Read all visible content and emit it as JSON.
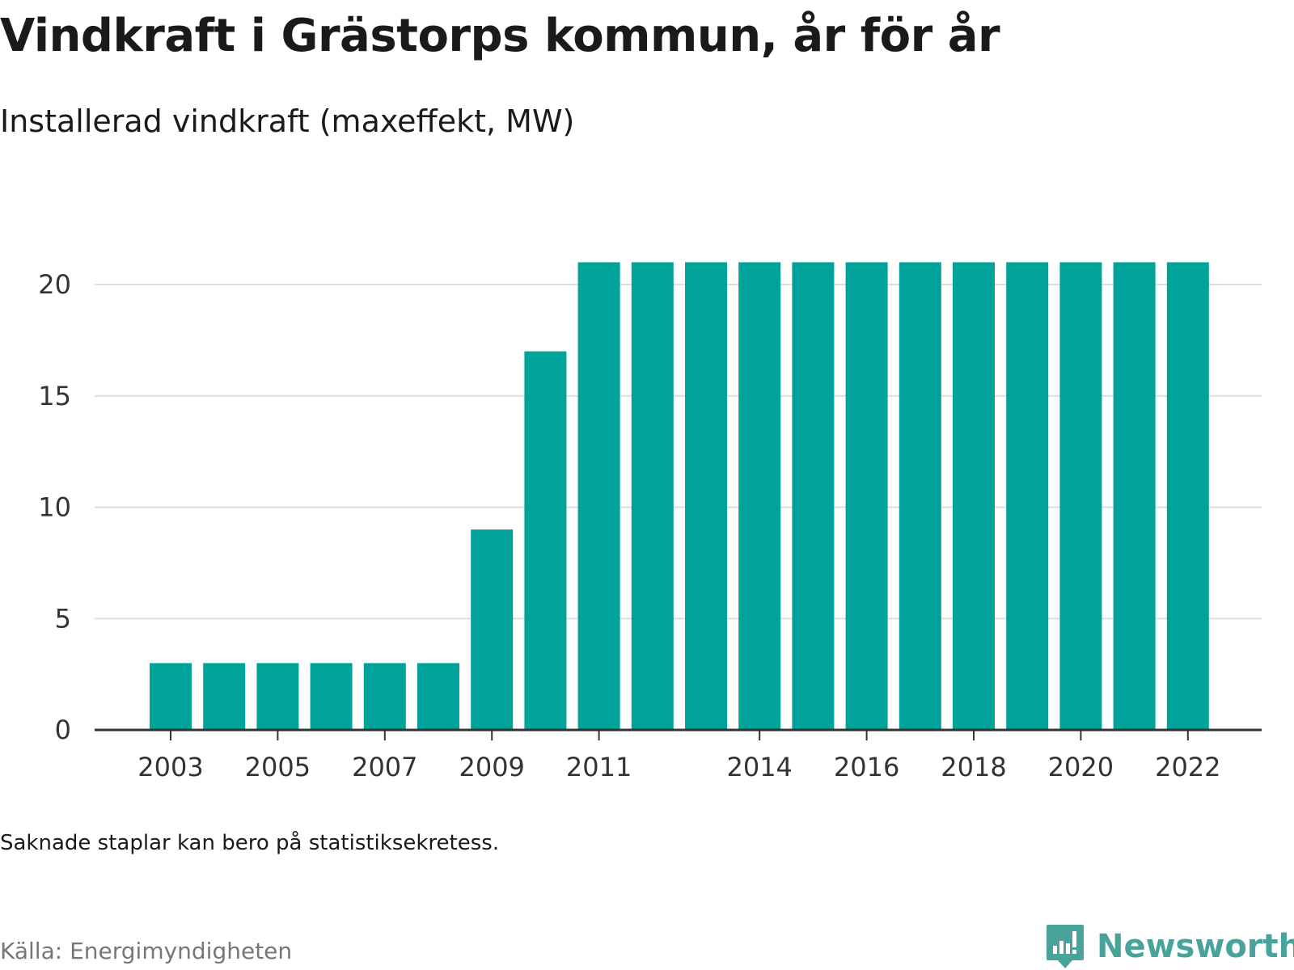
{
  "title": "Vindkraft i Grästorps kommun, år för år",
  "subtitle": "Installerad vindkraft (maxeffekt, MW)",
  "note": "Saknade staplar kan bero på statistiksekretess.",
  "source": "Källa: Energimyndigheten",
  "logo": {
    "name": "newsworthy-logo-icon",
    "text": "Newsworthy"
  },
  "colors": {
    "bar": "#00a399",
    "grid": "#dddddd",
    "axis": "#333333",
    "brand": "#4aa39b"
  },
  "chart_data": {
    "type": "bar",
    "title": "Vindkraft i Grästorps kommun, år för år",
    "subtitle": "Installerad vindkraft (maxeffekt, MW)",
    "xlabel": "",
    "ylabel": "",
    "categories": [
      "2003",
      "2004",
      "2005",
      "2006",
      "2007",
      "2008",
      "2009",
      "2010",
      "2011",
      "2012",
      "2013",
      "2014",
      "2015",
      "2016",
      "2017",
      "2018",
      "2019",
      "2020",
      "2021",
      "2022"
    ],
    "values": [
      3,
      3,
      3,
      3,
      3,
      3,
      9,
      17,
      21,
      21,
      21,
      21,
      21,
      21,
      21,
      21,
      21,
      21,
      21,
      21
    ],
    "ylim": [
      0,
      21
    ],
    "yticks": [
      0,
      5,
      10,
      15,
      20
    ],
    "xtick_labels": [
      "2003",
      "2005",
      "2007",
      "2009",
      "2011",
      "2014",
      "2016",
      "2018",
      "2020",
      "2022"
    ],
    "grid": true,
    "legend": "none"
  }
}
